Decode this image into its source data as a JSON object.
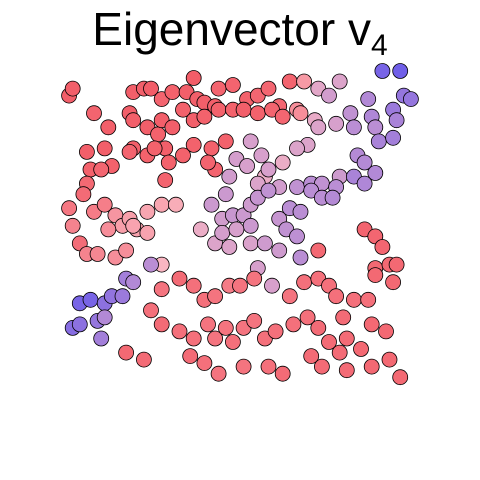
{
  "chart_data": {
    "type": "scatter",
    "title": "Eigenvector v",
    "title_subscript": "4",
    "xlabel": "",
    "ylabel": "",
    "xlim": [
      0,
      1
    ],
    "ylim": [
      0,
      1
    ],
    "grid": false,
    "legend": "none",
    "color_scale": {
      "low": "#f0414b",
      "mid": "#f9b6c2",
      "high": "#6a5bea"
    },
    "points": [
      [
        0.02,
        0.95,
        0.13
      ],
      [
        0.03,
        0.97,
        0.13
      ],
      [
        0.09,
        0.9,
        0.15
      ],
      [
        0.2,
        0.96,
        0.13
      ],
      [
        0.23,
        0.97,
        0.13
      ],
      [
        0.25,
        0.97,
        0.12
      ],
      [
        0.28,
        0.94,
        0.15
      ],
      [
        0.31,
        0.96,
        0.14
      ],
      [
        0.35,
        0.96,
        0.13
      ],
      [
        0.37,
        1.0,
        0.12
      ],
      [
        0.38,
        0.94,
        0.13
      ],
      [
        0.4,
        0.93,
        0.13
      ],
      [
        0.43,
        0.92,
        0.13
      ],
      [
        0.44,
        0.97,
        0.15
      ],
      [
        0.48,
        0.98,
        0.15
      ],
      [
        0.52,
        0.94,
        0.14
      ],
      [
        0.55,
        0.95,
        0.16
      ],
      [
        0.58,
        0.97,
        0.16
      ],
      [
        0.61,
        0.92,
        0.16
      ],
      [
        0.64,
        0.99,
        0.15
      ],
      [
        0.66,
        0.91,
        0.33
      ],
      [
        0.68,
        0.99,
        0.38
      ],
      [
        0.72,
        0.97,
        0.58
      ],
      [
        0.75,
        0.95,
        0.64
      ],
      [
        0.78,
        0.99,
        0.6
      ],
      [
        0.86,
        0.94,
        0.75
      ],
      [
        0.9,
        1.02,
        0.95
      ],
      [
        0.95,
        1.02,
        0.98
      ],
      [
        0.96,
        0.95,
        0.85
      ],
      [
        0.98,
        0.94,
        0.85
      ],
      [
        0.19,
        0.9,
        0.13
      ],
      [
        0.2,
        0.88,
        0.13
      ],
      [
        0.24,
        0.86,
        0.13
      ],
      [
        0.27,
        0.84,
        0.14
      ],
      [
        0.28,
        0.88,
        0.13
      ],
      [
        0.31,
        0.86,
        0.13
      ],
      [
        0.34,
        0.91,
        0.14
      ],
      [
        0.37,
        0.88,
        0.13
      ],
      [
        0.4,
        0.89,
        0.14
      ],
      [
        0.44,
        0.91,
        0.14
      ],
      [
        0.48,
        0.91,
        0.14
      ],
      [
        0.51,
        0.91,
        0.13
      ],
      [
        0.55,
        0.9,
        0.14
      ],
      [
        0.59,
        0.91,
        0.15
      ],
      [
        0.62,
        0.89,
        0.16
      ],
      [
        0.67,
        0.9,
        0.33
      ],
      [
        0.69,
        0.81,
        0.6
      ],
      [
        0.71,
        0.88,
        0.56
      ],
      [
        0.72,
        0.86,
        0.6
      ],
      [
        0.77,
        0.87,
        0.62
      ],
      [
        0.81,
        0.9,
        0.7
      ],
      [
        0.82,
        0.86,
        0.72
      ],
      [
        0.87,
        0.89,
        0.76
      ],
      [
        0.88,
        0.86,
        0.72
      ],
      [
        0.93,
        0.91,
        0.83
      ],
      [
        0.94,
        0.88,
        0.78
      ],
      [
        0.13,
        0.86,
        0.13
      ],
      [
        0.2,
        0.8,
        0.13
      ],
      [
        0.24,
        0.78,
        0.14
      ],
      [
        0.29,
        0.8,
        0.13
      ],
      [
        0.3,
        0.76,
        0.14
      ],
      [
        0.34,
        0.78,
        0.14
      ],
      [
        0.37,
        0.81,
        0.14
      ],
      [
        0.42,
        0.8,
        0.14
      ],
      [
        0.43,
        0.74,
        0.15
      ],
      [
        0.46,
        0.82,
        0.14
      ],
      [
        0.53,
        0.82,
        0.62
      ],
      [
        0.56,
        0.78,
        0.62
      ],
      [
        0.57,
        0.72,
        0.55
      ],
      [
        0.62,
        0.76,
        0.55
      ],
      [
        0.66,
        0.8,
        0.6
      ],
      [
        0.78,
        0.72,
        0.65
      ],
      [
        0.83,
        0.78,
        0.74
      ],
      [
        0.85,
        0.76,
        0.74
      ],
      [
        0.88,
        0.73,
        0.75
      ],
      [
        0.89,
        0.82,
        0.78
      ],
      [
        0.93,
        0.83,
        0.8
      ],
      [
        0.07,
        0.79,
        0.13
      ],
      [
        0.08,
        0.74,
        0.14
      ],
      [
        0.12,
        0.8,
        0.13
      ],
      [
        0.14,
        0.75,
        0.14
      ],
      [
        0.07,
        0.7,
        0.17
      ],
      [
        0.11,
        0.74,
        0.16
      ],
      [
        0.19,
        0.79,
        0.15
      ],
      [
        0.26,
        0.8,
        0.14
      ],
      [
        0.29,
        0.71,
        0.15
      ],
      [
        0.41,
        0.76,
        0.15
      ],
      [
        0.47,
        0.72,
        0.64
      ],
      [
        0.49,
        0.77,
        0.63
      ],
      [
        0.52,
        0.75,
        0.62
      ],
      [
        0.55,
        0.7,
        0.6
      ],
      [
        0.58,
        0.74,
        0.62
      ],
      [
        0.61,
        0.69,
        0.64
      ],
      [
        0.66,
        0.69,
        0.7
      ],
      [
        0.7,
        0.7,
        0.72
      ],
      [
        0.73,
        0.7,
        0.7
      ],
      [
        0.77,
        0.69,
        0.72
      ],
      [
        0.82,
        0.72,
        0.78
      ],
      [
        0.85,
        0.7,
        0.76
      ],
      [
        0.02,
        0.63,
        0.23
      ],
      [
        0.03,
        0.58,
        0.28
      ],
      [
        0.06,
        0.67,
        0.18
      ],
      [
        0.09,
        0.62,
        0.25
      ],
      [
        0.12,
        0.64,
        0.26
      ],
      [
        0.15,
        0.61,
        0.36
      ],
      [
        0.17,
        0.58,
        0.4
      ],
      [
        0.19,
        0.6,
        0.4
      ],
      [
        0.21,
        0.57,
        0.41
      ],
      [
        0.24,
        0.62,
        0.43
      ],
      [
        0.28,
        0.64,
        0.43
      ],
      [
        0.32,
        0.64,
        0.46
      ],
      [
        0.39,
        0.57,
        0.55
      ],
      [
        0.42,
        0.64,
        0.66
      ],
      [
        0.45,
        0.6,
        0.64
      ],
      [
        0.46,
        0.67,
        0.66
      ],
      [
        0.48,
        0.61,
        0.67
      ],
      [
        0.51,
        0.61,
        0.66
      ],
      [
        0.53,
        0.58,
        0.66
      ],
      [
        0.53,
        0.64,
        0.65
      ],
      [
        0.55,
        0.66,
        0.68
      ],
      [
        0.58,
        0.68,
        0.7
      ],
      [
        0.61,
        0.6,
        0.68
      ],
      [
        0.64,
        0.63,
        0.72
      ],
      [
        0.67,
        0.62,
        0.72
      ],
      [
        0.7,
        0.68,
        0.72
      ],
      [
        0.73,
        0.66,
        0.72
      ],
      [
        0.76,
        0.66,
        0.74
      ],
      [
        0.85,
        0.57,
        0.15
      ],
      [
        0.88,
        0.55,
        0.16
      ],
      [
        0.9,
        0.52,
        0.16
      ],
      [
        0.05,
        0.53,
        0.19
      ],
      [
        0.07,
        0.5,
        0.28
      ],
      [
        0.1,
        0.5,
        0.3
      ],
      [
        0.13,
        0.57,
        0.33
      ],
      [
        0.15,
        0.49,
        0.33
      ],
      [
        0.18,
        0.51,
        0.33
      ],
      [
        0.2,
        0.58,
        0.42
      ],
      [
        0.24,
        0.56,
        0.42
      ],
      [
        0.28,
        0.47,
        0.5
      ],
      [
        0.43,
        0.53,
        0.6
      ],
      [
        0.45,
        0.56,
        0.63
      ],
      [
        0.47,
        0.52,
        0.6
      ],
      [
        0.49,
        0.57,
        0.62
      ],
      [
        0.53,
        0.53,
        0.61
      ],
      [
        0.55,
        0.46,
        0.62
      ],
      [
        0.57,
        0.53,
        0.65
      ],
      [
        0.61,
        0.51,
        0.65
      ],
      [
        0.63,
        0.57,
        0.7
      ],
      [
        0.66,
        0.55,
        0.71
      ],
      [
        0.67,
        0.49,
        0.72
      ],
      [
        0.72,
        0.51,
        0.17
      ],
      [
        0.88,
        0.46,
        0.17
      ],
      [
        0.92,
        0.47,
        0.17
      ],
      [
        0.94,
        0.47,
        0.17
      ],
      [
        0.05,
        0.36,
        0.95
      ],
      [
        0.08,
        0.37,
        0.95
      ],
      [
        0.12,
        0.36,
        0.88
      ],
      [
        0.14,
        0.38,
        0.86
      ],
      [
        0.17,
        0.38,
        0.83
      ],
      [
        0.18,
        0.43,
        0.8
      ],
      [
        0.2,
        0.42,
        0.75
      ],
      [
        0.25,
        0.47,
        0.72
      ],
      [
        0.28,
        0.4,
        0.22
      ],
      [
        0.33,
        0.43,
        0.18
      ],
      [
        0.37,
        0.41,
        0.2
      ],
      [
        0.4,
        0.37,
        0.2
      ],
      [
        0.43,
        0.38,
        0.22
      ],
      [
        0.47,
        0.41,
        0.25
      ],
      [
        0.5,
        0.41,
        0.22
      ],
      [
        0.54,
        0.43,
        0.22
      ],
      [
        0.59,
        0.41,
        0.62
      ],
      [
        0.64,
        0.38,
        0.22
      ],
      [
        0.68,
        0.42,
        0.2
      ],
      [
        0.72,
        0.43,
        0.2
      ],
      [
        0.75,
        0.41,
        0.2
      ],
      [
        0.77,
        0.38,
        0.2
      ],
      [
        0.82,
        0.37,
        0.2
      ],
      [
        0.86,
        0.37,
        0.2
      ],
      [
        0.88,
        0.44,
        0.17
      ],
      [
        0.93,
        0.42,
        0.17
      ],
      [
        0.03,
        0.29,
        0.9
      ],
      [
        0.05,
        0.3,
        0.88
      ],
      [
        0.1,
        0.31,
        0.85
      ],
      [
        0.11,
        0.26,
        0.8
      ],
      [
        0.12,
        0.32,
        0.75
      ],
      [
        0.25,
        0.34,
        0.2
      ],
      [
        0.28,
        0.3,
        0.18
      ],
      [
        0.33,
        0.28,
        0.2
      ],
      [
        0.37,
        0.26,
        0.2
      ],
      [
        0.41,
        0.3,
        0.22
      ],
      [
        0.43,
        0.26,
        0.22
      ],
      [
        0.46,
        0.29,
        0.22
      ],
      [
        0.48,
        0.25,
        0.2
      ],
      [
        0.51,
        0.29,
        0.22
      ],
      [
        0.54,
        0.31,
        0.22
      ],
      [
        0.57,
        0.26,
        0.2
      ],
      [
        0.6,
        0.28,
        0.2
      ],
      [
        0.65,
        0.3,
        0.2
      ],
      [
        0.69,
        0.32,
        0.2
      ],
      [
        0.72,
        0.29,
        0.18
      ],
      [
        0.75,
        0.25,
        0.18
      ],
      [
        0.79,
        0.32,
        0.18
      ],
      [
        0.8,
        0.26,
        0.18
      ],
      [
        0.87,
        0.3,
        0.17
      ],
      [
        0.91,
        0.28,
        0.17
      ],
      [
        0.18,
        0.22,
        0.17
      ],
      [
        0.23,
        0.2,
        0.18
      ],
      [
        0.36,
        0.21,
        0.18
      ],
      [
        0.4,
        0.19,
        0.2
      ],
      [
        0.44,
        0.16,
        0.22
      ],
      [
        0.51,
        0.18,
        0.22
      ],
      [
        0.58,
        0.18,
        0.2
      ],
      [
        0.62,
        0.16,
        0.18
      ],
      [
        0.7,
        0.21,
        0.18
      ],
      [
        0.73,
        0.18,
        0.18
      ],
      [
        0.78,
        0.22,
        0.18
      ],
      [
        0.8,
        0.17,
        0.18
      ],
      [
        0.84,
        0.23,
        0.17
      ],
      [
        0.87,
        0.18,
        0.17
      ],
      [
        0.92,
        0.2,
        0.17
      ],
      [
        0.95,
        0.15,
        0.17
      ]
    ]
  }
}
